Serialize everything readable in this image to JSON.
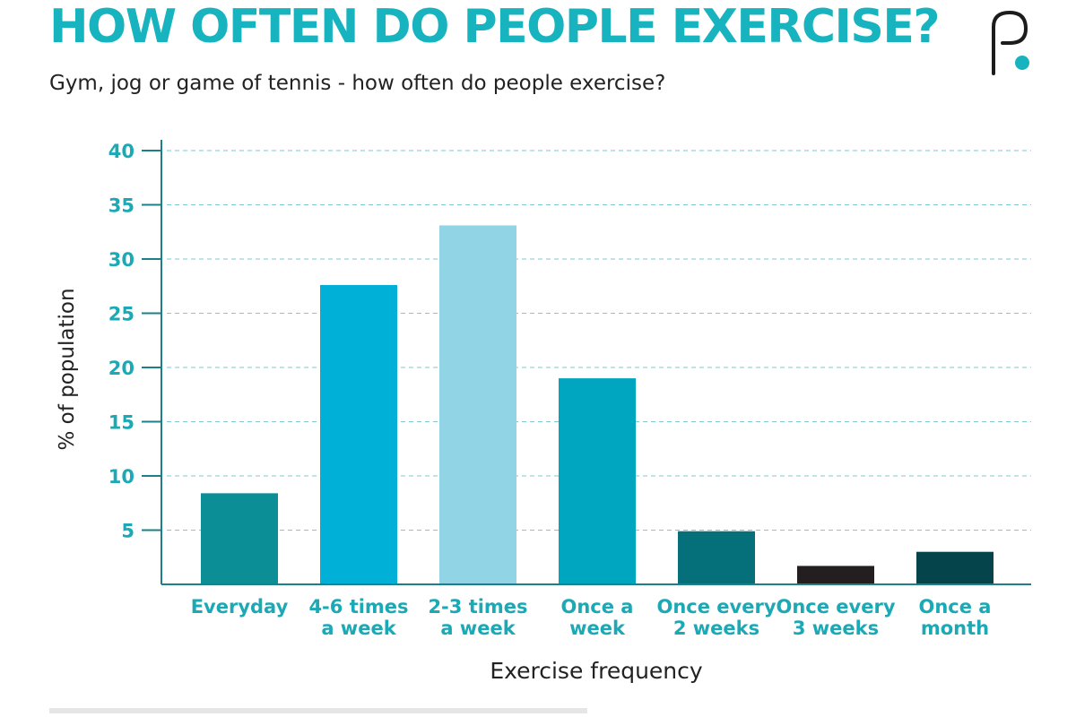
{
  "header": {
    "title": "HOW OFTEN DO PEOPLE EXERCISE?",
    "subtitle": "Gym, jog or game of tennis - how often do people exercise?",
    "logo_icon": "p-logo-icon"
  },
  "colors": {
    "title": "#17b3bf",
    "axis_text": "#1aa9b5",
    "grid": "#7fc8d0",
    "axis_line": "#1e7f89"
  },
  "chart_data": {
    "type": "bar",
    "xlabel": "Exercise frequency",
    "ylabel": "% of population",
    "ylim": [
      0,
      40
    ],
    "yticks": [
      5,
      10,
      15,
      20,
      25,
      30,
      35,
      40
    ],
    "grid": true,
    "categories": [
      [
        "Everyday"
      ],
      [
        "4-6 times",
        "a week"
      ],
      [
        "2-3 times",
        "a week"
      ],
      [
        "Once a",
        "week"
      ],
      [
        "Once every",
        "2 weeks"
      ],
      [
        "Once every",
        "3 weeks"
      ],
      [
        "Once a",
        "month"
      ]
    ],
    "values": [
      8.4,
      27.6,
      33.1,
      19.0,
      4.9,
      1.7,
      3.0
    ],
    "bar_colors": [
      "#0c8e96",
      "#00b0d6",
      "#91d4e6",
      "#00a5bf",
      "#06707a",
      "#231f20",
      "#04444a"
    ]
  }
}
